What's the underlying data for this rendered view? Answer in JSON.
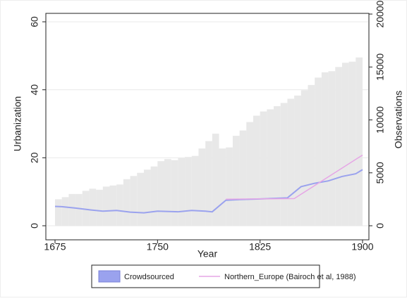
{
  "chart_data": {
    "type": "histogram-line",
    "xlabel": "Year",
    "ylabel": "Urbanization",
    "y2label": "Observations",
    "xlim": [
      1675,
      1900
    ],
    "xticks": [
      1675,
      1750,
      1825,
      1900
    ],
    "ylim": [
      0,
      60
    ],
    "yticks": [
      0,
      20,
      40,
      60
    ],
    "y2lim": [
      0,
      20000
    ],
    "y2ticks": [
      0,
      5000,
      10000,
      15000,
      20000
    ],
    "grid": true,
    "histogram": {
      "axis": "y2",
      "color": "#e8e8e8",
      "bins": [
        1675,
        1680,
        1685,
        1690,
        1695,
        1700,
        1705,
        1710,
        1715,
        1720,
        1725,
        1730,
        1735,
        1740,
        1745,
        1750,
        1755,
        1760,
        1765,
        1770,
        1775,
        1780,
        1785,
        1790,
        1795,
        1800,
        1805,
        1810,
        1815,
        1820,
        1825,
        1830,
        1835,
        1840,
        1845,
        1850,
        1855,
        1860,
        1865,
        1870,
        1875,
        1880,
        1885,
        1890,
        1895,
        1900
      ],
      "counts": [
        2500,
        2700,
        3000,
        3000,
        3300,
        3500,
        3400,
        3700,
        3800,
        3900,
        4400,
        4700,
        5000,
        5300,
        5600,
        6100,
        6300,
        6200,
        6400,
        6500,
        6600,
        7300,
        8000,
        8700,
        7300,
        7400,
        8500,
        9000,
        9800,
        10400,
        10800,
        11000,
        11300,
        11600,
        12000,
        12300,
        12800,
        13300,
        14000,
        14500,
        14600,
        15000,
        15400,
        15500,
        15900
      ]
    },
    "series": [
      {
        "name": "Crowdsourced",
        "color": "#9aa2ee",
        "x": [
          1675,
          1680,
          1690,
          1700,
          1710,
          1720,
          1730,
          1740,
          1750,
          1765,
          1775,
          1785,
          1790,
          1800,
          1810,
          1825,
          1845,
          1855,
          1865,
          1875,
          1885,
          1895,
          1900
        ],
        "values": [
          5.7,
          5.6,
          5.2,
          4.7,
          4.3,
          4.5,
          4.0,
          3.8,
          4.3,
          4.1,
          4.5,
          4.3,
          4.1,
          7.5,
          7.7,
          7.9,
          8.2,
          11.5,
          12.5,
          13.2,
          14.5,
          15.3,
          16.5
        ]
      },
      {
        "name": "Northern_Europe (Bairoch et al, 1988)",
        "color": "#e6a6e6",
        "x": [
          1800,
          1850,
          1900
        ],
        "values": [
          7.8,
          8.0,
          20.8
        ]
      }
    ]
  }
}
